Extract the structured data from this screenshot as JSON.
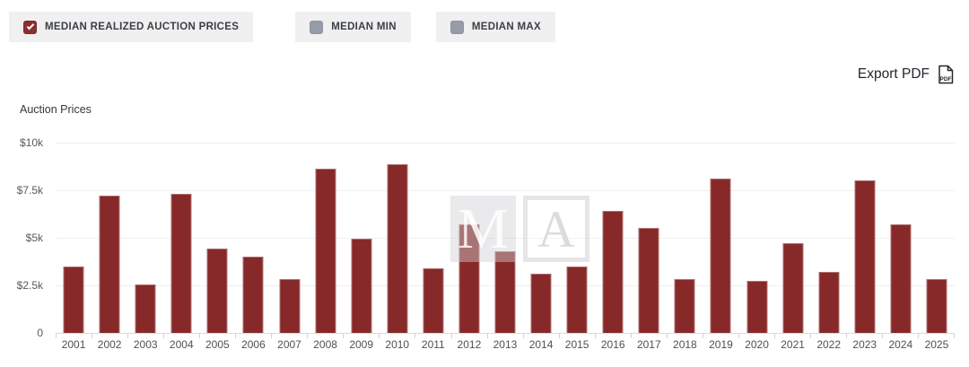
{
  "filters": {
    "items": [
      {
        "label": "MEDIAN REALIZED AUCTION PRICES",
        "checked": true
      },
      {
        "label": "MEDIAN MIN",
        "checked": false
      },
      {
        "label": "MEDIAN MAX",
        "checked": false
      }
    ]
  },
  "export": {
    "label": "Export PDF",
    "icon": "pdf-file-icon",
    "icon_text": "PDF"
  },
  "watermark": {
    "left_letter": "M",
    "right_letter": "A"
  },
  "colors": {
    "bar": "#872929",
    "checked_checkbox": "#8a2f2f",
    "unchecked_checkbox": "#969ca7",
    "button_background": "#f0f0f1",
    "gridline": "#efeff2",
    "axis_line": "#d9dae1"
  },
  "chart_data": {
    "type": "bar",
    "title": "Auction Prices",
    "series_name": "Median Realized Auction Prices",
    "categories": [
      "2001",
      "2002",
      "2003",
      "2004",
      "2005",
      "2006",
      "2007",
      "2008",
      "2009",
      "2010",
      "2011",
      "2012",
      "2013",
      "2014",
      "2015",
      "2016",
      "2017",
      "2018",
      "2019",
      "2020",
      "2021",
      "2022",
      "2023",
      "2024",
      "2025"
    ],
    "values": [
      3500,
      7200,
      2550,
      7300,
      4450,
      4000,
      2850,
      8650,
      4950,
      8850,
      3400,
      5700,
      4300,
      3100,
      3500,
      6400,
      5500,
      2850,
      8100,
      2750,
      4700,
      3200,
      8000,
      5700,
      2850
    ],
    "xlabel": "",
    "ylabel": "Auction Prices",
    "ylim": [
      0,
      10000
    ],
    "yticks": [
      10000,
      7500,
      5000,
      2500,
      0
    ],
    "ytick_labels": [
      "$10k",
      "$7.5k",
      "$5k",
      "$2.5k",
      "0"
    ],
    "grid": true,
    "legend_position": "top",
    "bar_color": "#872929"
  }
}
